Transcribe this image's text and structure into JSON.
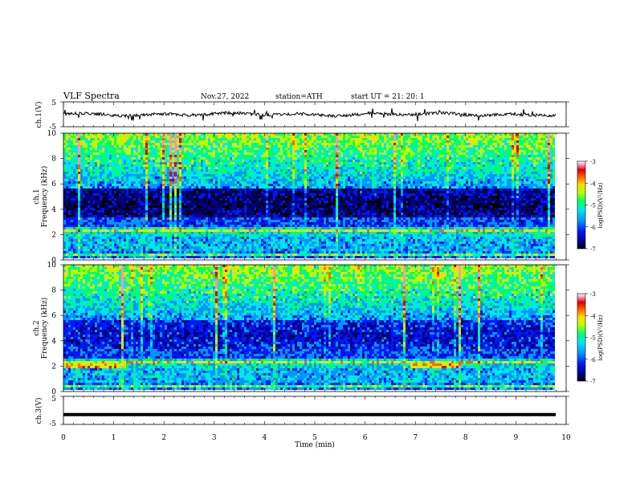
{
  "header": {
    "title": "VLF  Spectra",
    "date": "Nov.27, 2022",
    "station": "station=ATH",
    "start": "start  UT  =    21: 20: 1"
  },
  "chart_data": [
    {
      "name": "ch1-waveform",
      "type": "line",
      "ylabel": "ch.1(V)",
      "ylim": [
        -5,
        5
      ],
      "y_ticklabels": [
        "5",
        "-5"
      ],
      "xlim": [
        0,
        10
      ],
      "x_end": 9.8,
      "baseline": 0,
      "trace_color": "#000000"
    },
    {
      "name": "ch1-spectrogram",
      "type": "heatmap",
      "ylabel_lines": [
        "ch.1",
        "Frequency  (kHz)"
      ],
      "ylim": [
        0,
        10
      ],
      "y_ticks": [
        0,
        2,
        4,
        6,
        8,
        10
      ],
      "xlim": [
        0,
        10
      ],
      "x_end": 9.8,
      "colorbar": {
        "label": "log(PSD)(V²/Hz)",
        "range": [
          -7,
          -3
        ],
        "ticks": [
          "-3",
          "-4",
          "-5",
          "-6",
          "-7"
        ]
      }
    },
    {
      "name": "ch2-spectrogram",
      "type": "heatmap",
      "ylabel_lines": [
        "ch.2",
        "Frequency  (kHz)"
      ],
      "ylim": [
        0,
        10
      ],
      "y_ticks": [
        0,
        2,
        4,
        6,
        8,
        10
      ],
      "xlim": [
        0,
        10
      ],
      "x_end": 9.8,
      "colorbar": {
        "label": "log(PSD)(V²/Hz)",
        "range": [
          -7,
          -3
        ],
        "ticks": [
          "-3",
          "-4",
          "-5",
          "-6",
          "-7"
        ]
      }
    },
    {
      "name": "ch3-waveform",
      "type": "line",
      "ylabel": "ch.3(V)",
      "ylim": [
        -5,
        5
      ],
      "y_ticklabels": [
        "5",
        "-5"
      ],
      "xlim": [
        0,
        10
      ],
      "x_end": 9.8,
      "baseline": -1.5,
      "trace_color": "#000000"
    }
  ],
  "x_axis": {
    "label": "Time  (min)",
    "ticks": [
      "0",
      "1",
      "2",
      "3",
      "4",
      "5",
      "6",
      "7",
      "8",
      "9",
      "10"
    ]
  },
  "colormap": [
    "#000000",
    "#00008c",
    "#0018ff",
    "#0096ff",
    "#00e6f0",
    "#00ff64",
    "#b4ff00",
    "#ffdc00",
    "#ff6400",
    "#dc0000",
    "#ff96b4",
    "#ffffff"
  ]
}
